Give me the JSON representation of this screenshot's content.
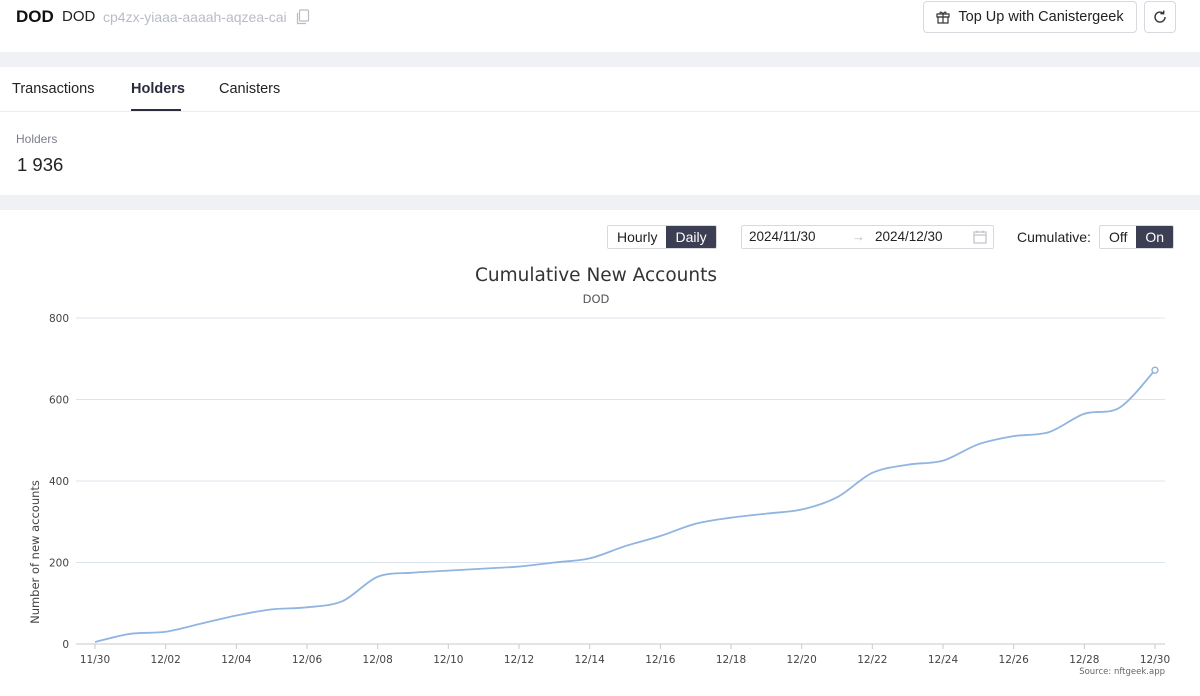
{
  "header": {
    "token_symbol": "DOD",
    "token_name": "DOD",
    "canister_id": "cp4zx-yiaaa-aaaah-aqzea-cai",
    "topup_label": "Top Up with Canistergeek"
  },
  "tabs": [
    {
      "label": "Transactions",
      "active": false
    },
    {
      "label": "Holders",
      "active": true
    },
    {
      "label": "Canisters",
      "active": false
    }
  ],
  "stats": {
    "holders_label": "Holders",
    "holders_value": "1 936"
  },
  "controls": {
    "interval_options": [
      "Hourly",
      "Daily"
    ],
    "interval_selected": "Daily",
    "date_start": "2024/11/30",
    "date_end": "2024/12/30",
    "date_separator": "→",
    "cumulative_label": "Cumulative:",
    "cumulative_options": [
      "Off",
      "On"
    ],
    "cumulative_selected": "On"
  },
  "colors": {
    "accent": "#3c3e53",
    "line": "#8fb5e0"
  },
  "chart_data": {
    "type": "line",
    "title": "Cumulative New Accounts",
    "subtitle": "DOD",
    "xlabel": "",
    "ylabel": "Number of new accounts",
    "ylim": [
      0,
      800
    ],
    "yticks": [
      0,
      200,
      400,
      600,
      800
    ],
    "grid": true,
    "source": "Source: nftgeek.app",
    "x": [
      "11/30",
      "12/01",
      "12/02",
      "12/03",
      "12/04",
      "12/05",
      "12/06",
      "12/07",
      "12/08",
      "12/09",
      "12/10",
      "12/11",
      "12/12",
      "12/13",
      "12/14",
      "12/15",
      "12/16",
      "12/17",
      "12/18",
      "12/19",
      "12/20",
      "12/21",
      "12/22",
      "12/23",
      "12/24",
      "12/25",
      "12/26",
      "12/27",
      "12/28",
      "12/29",
      "12/30"
    ],
    "xtick_labels": [
      "11/30",
      "12/02",
      "12/04",
      "12/06",
      "12/08",
      "12/10",
      "12/12",
      "12/14",
      "12/16",
      "12/18",
      "12/20",
      "12/22",
      "12/24",
      "12/26",
      "12/28",
      "12/30"
    ],
    "series": [
      {
        "name": "DOD",
        "values": [
          5,
          25,
          30,
          50,
          70,
          85,
          90,
          105,
          165,
          175,
          180,
          185,
          190,
          200,
          210,
          240,
          265,
          295,
          310,
          320,
          330,
          360,
          420,
          440,
          450,
          490,
          510,
          520,
          565,
          580,
          672
        ]
      }
    ]
  }
}
